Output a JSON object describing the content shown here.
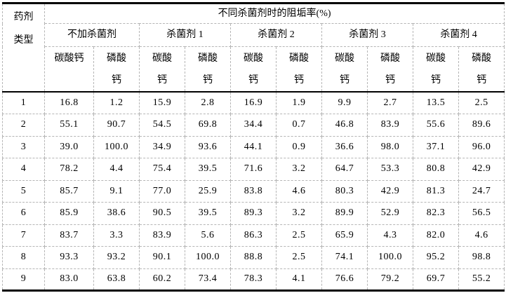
{
  "table": {
    "corner_header": "药剂\n类型",
    "main_header": "不同杀菌剂时的阻垢率(%)",
    "group_headers": [
      "不加杀菌剂",
      "杀菌剂 1",
      "杀菌剂 2",
      "杀菌剂 3",
      "杀菌剂 4"
    ],
    "sub_headers": [
      "碳酸钙",
      "磷酸\n钙",
      "碳酸\n钙",
      "磷酸\n钙",
      "碳酸\n钙",
      "磷酸\n钙",
      "碳酸\n钙",
      "磷酸\n钙",
      "碳酸\n钙",
      "磷酸\n钙"
    ],
    "rows": [
      {
        "label": "1",
        "values": [
          "16.8",
          "1.2",
          "15.9",
          "2.8",
          "16.9",
          "1.9",
          "9.9",
          "2.7",
          "13.5",
          "2.5"
        ]
      },
      {
        "label": "2",
        "values": [
          "55.1",
          "90.7",
          "54.5",
          "69.8",
          "34.4",
          "0.7",
          "46.8",
          "83.9",
          "55.6",
          "89.6"
        ]
      },
      {
        "label": "3",
        "values": [
          "39.0",
          "100.0",
          "34.9",
          "93.6",
          "44.1",
          "0.9",
          "36.6",
          "98.0",
          "37.1",
          "96.0"
        ]
      },
      {
        "label": "4",
        "values": [
          "78.2",
          "4.4",
          "75.4",
          "39.5",
          "71.6",
          "3.2",
          "64.7",
          "53.3",
          "80.8",
          "42.9"
        ]
      },
      {
        "label": "5",
        "values": [
          "85.7",
          "9.1",
          "77.0",
          "25.9",
          "83.8",
          "4.6",
          "80.3",
          "42.9",
          "81.3",
          "24.7"
        ]
      },
      {
        "label": "6",
        "values": [
          "85.9",
          "38.6",
          "90.5",
          "39.5",
          "89.3",
          "3.2",
          "89.9",
          "52.9",
          "82.3",
          "56.5"
        ]
      },
      {
        "label": "7",
        "values": [
          "83.7",
          "3.3",
          "83.9",
          "5.6",
          "86.3",
          "2.5",
          "65.9",
          "4.3",
          "82.0",
          "4.6"
        ]
      },
      {
        "label": "8",
        "values": [
          "93.3",
          "93.2",
          "90.1",
          "100.0",
          "88.8",
          "2.5",
          "74.1",
          "100.0",
          "95.2",
          "98.8"
        ]
      },
      {
        "label": "9",
        "values": [
          "83.0",
          "63.8",
          "60.2",
          "73.4",
          "78.3",
          "4.1",
          "76.6",
          "79.2",
          "69.7",
          "55.2"
        ]
      }
    ],
    "colors": {
      "rule_solid": "#000000",
      "grid_dashed": "#b5b5b5",
      "text": "#000000",
      "background": "#ffffff"
    }
  }
}
